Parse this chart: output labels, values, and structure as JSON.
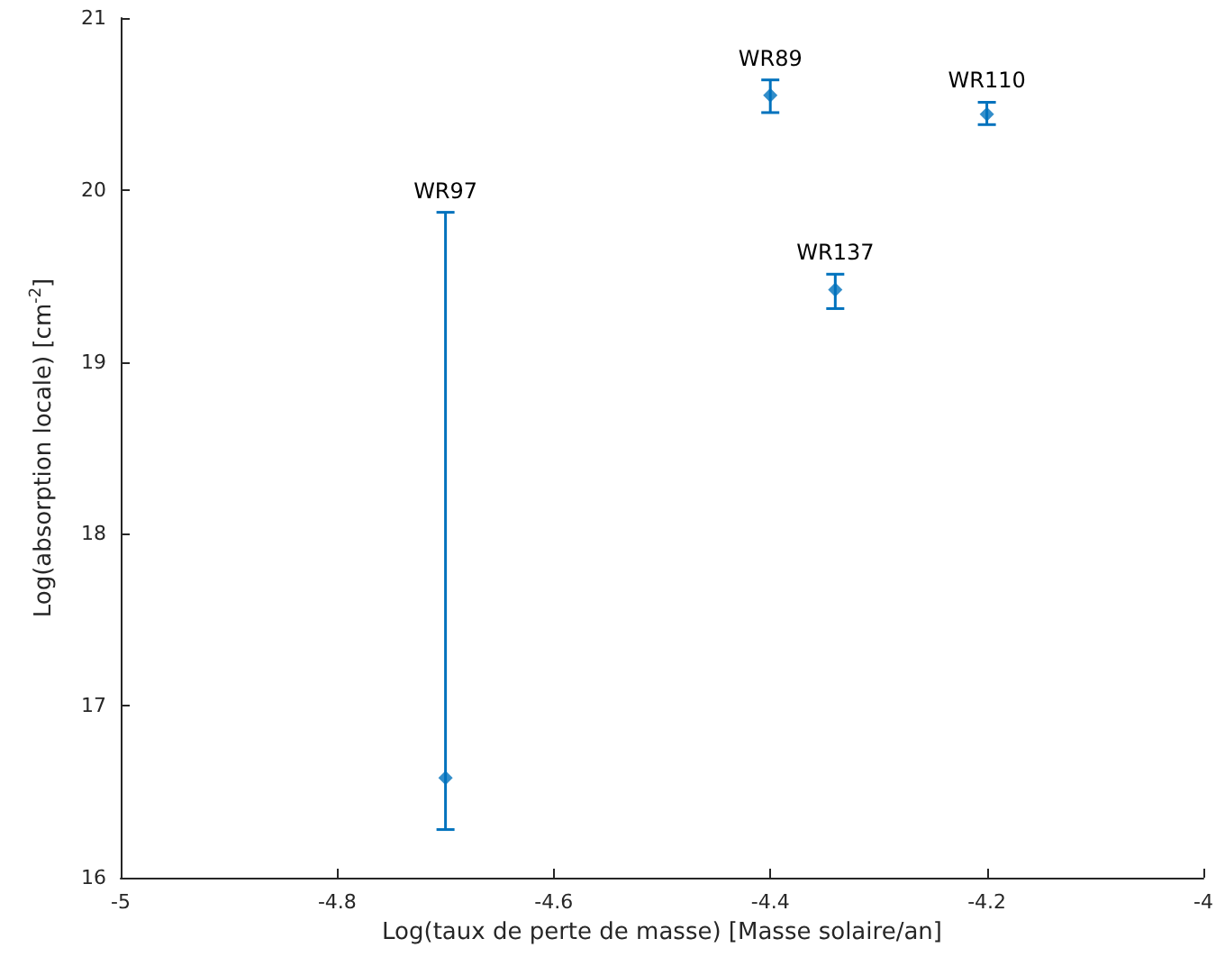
{
  "chart_data": {
    "type": "scatter",
    "xlabel": "Log(taux de perte de masse) [Masse solaire/an]",
    "ylabel": "Log(absorption locale) [cm$^{-2}$]",
    "x": [
      -4.7,
      -4.4,
      -4.2,
      -4.34
    ],
    "series": [
      {
        "color": "#0072bd",
        "values": [
          16.58,
          20.55,
          20.44,
          19.42
        ],
        "errors": [
          [
            16.28,
            19.87
          ],
          [
            20.45,
            20.64
          ],
          [
            20.38,
            20.51
          ],
          [
            19.31,
            19.51
          ]
        ]
      }
    ],
    "annotations": [
      {
        "text": "WR97",
        "x": -4.7,
        "y": 19.87
      },
      {
        "text": "WR89",
        "x": -4.4,
        "y": 20.64
      },
      {
        "text": "WR110",
        "x": -4.2,
        "y": 20.51
      },
      {
        "text": "WR137",
        "x": -4.34,
        "y": 19.51
      }
    ],
    "xlim": [
      -5,
      -4
    ],
    "xticks": [
      -5,
      -4.8,
      -4.6,
      -4.4,
      -4.2,
      -4
    ],
    "ylim": [
      16,
      21
    ],
    "yticks": [
      16,
      17,
      18,
      19,
      20,
      21
    ],
    "marker": "diamond"
  }
}
